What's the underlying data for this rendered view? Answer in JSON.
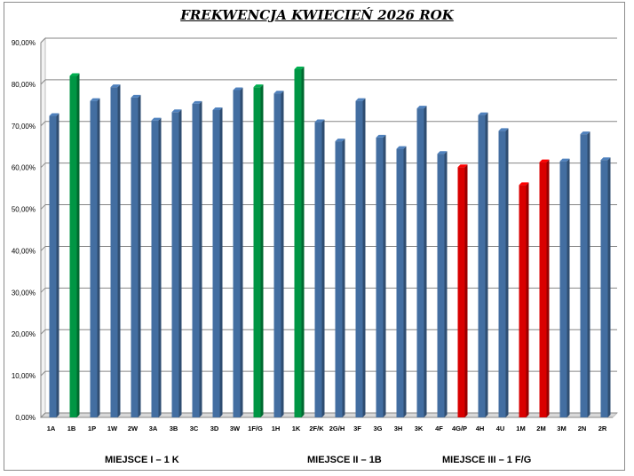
{
  "chart_data": {
    "type": "bar",
    "title": "FREKWENCJA KWIECIEŃ 2026 ROK",
    "categories": [
      "1A",
      "1B",
      "1P",
      "1W",
      "2W",
      "3A",
      "3B",
      "3C",
      "3D",
      "3W",
      "1F/G",
      "1H",
      "1K",
      "2F/K",
      "2G/H",
      "3F",
      "3G",
      "3H",
      "3K",
      "4F",
      "4G/P",
      "4H",
      "4U",
      "1M",
      "2M",
      "3M",
      "2N",
      "2R"
    ],
    "values": [
      72.4,
      82.0,
      76.0,
      79.3,
      76.8,
      71.3,
      73.3,
      75.3,
      73.8,
      78.6,
      79.3,
      77.8,
      83.6,
      70.9,
      66.3,
      76.0,
      67.2,
      64.5,
      74.2,
      63.3,
      60.1,
      72.6,
      68.8,
      55.8,
      61.3,
      61.5,
      68.0,
      61.8
    ],
    "highlight": {
      "1B": "green",
      "1F/G": "green",
      "1K": "green",
      "4G/P": "red",
      "1M": "red",
      "2M": "red"
    },
    "colors": {
      "default": "#4f81bd",
      "green": "#00b050",
      "red": "#ff0000"
    },
    "ylim": [
      0,
      90
    ],
    "yticks": [
      "0,00%",
      "10,00%",
      "20,00%",
      "30,00%",
      "40,00%",
      "50,00%",
      "60,00%",
      "70,00%",
      "80,00%",
      "90,00%"
    ],
    "grid": true,
    "legend": "none"
  },
  "captions": {
    "first": "MIEJSCE I – 1 K",
    "second": "MIEJSCE II – 1B",
    "third": "MIEJSCE III – 1 F/G"
  }
}
